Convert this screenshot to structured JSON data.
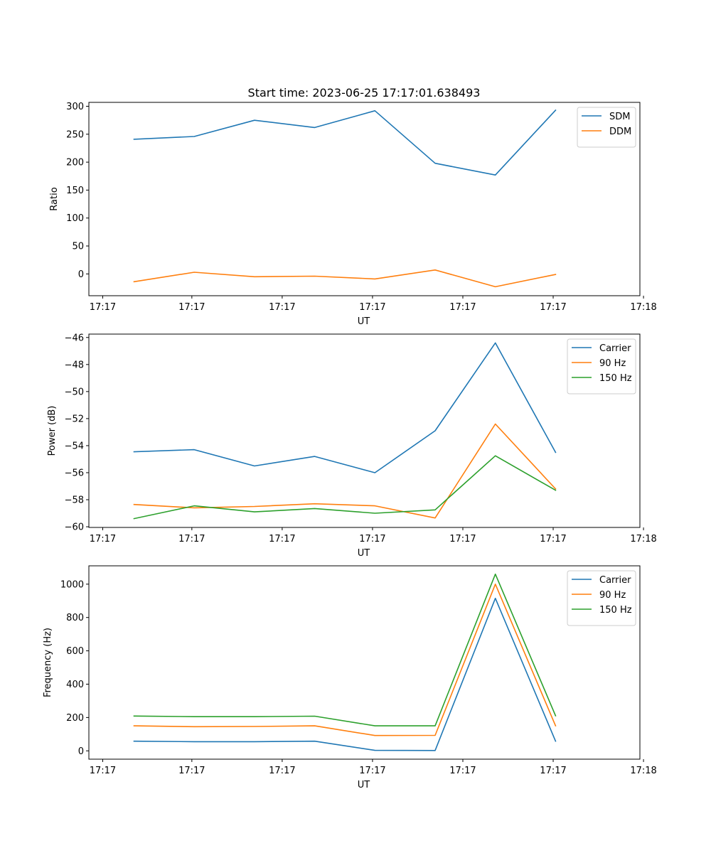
{
  "figure": {
    "title": "Start time: 2023-06-25 17:17:01.638493"
  },
  "chart_data": [
    {
      "type": "line",
      "title": "Start time: 2023-06-25 17:17:01.638493",
      "xlabel": "UT",
      "ylabel": "Ratio",
      "x_ticks": [
        "17:17",
        "17:17",
        "17:17",
        "17:17",
        "17:17",
        "17:17",
        "17:18"
      ],
      "y_ticks": [
        "0",
        "50",
        "100",
        "150",
        "200",
        "250",
        "300"
      ],
      "ylim": [
        -39,
        307
      ],
      "x": [
        1,
        2,
        3,
        4,
        5,
        6,
        7,
        8
      ],
      "xlim": [
        0.25,
        9.4
      ],
      "x_tick_positions": [
        0.48,
        1.96,
        3.46,
        4.96,
        6.46,
        7.96,
        9.46
      ],
      "y_tick_values": [
        0,
        50,
        100,
        150,
        200,
        250,
        300
      ],
      "legend": "upper right",
      "grid": false,
      "series": [
        {
          "name": "SDM",
          "color": "#1f77b4",
          "values": [
            241,
            246,
            275,
            262,
            292,
            198,
            177,
            293
          ]
        },
        {
          "name": "DDM",
          "color": "#ff7f0e",
          "values": [
            -14,
            3,
            -5,
            -4,
            -9,
            7,
            -23,
            -1
          ]
        }
      ]
    },
    {
      "type": "line",
      "title": "",
      "xlabel": "UT",
      "ylabel": "Power (dB)",
      "x_ticks": [
        "17:17",
        "17:17",
        "17:17",
        "17:17",
        "17:17",
        "17:17",
        "17:18"
      ],
      "y_ticks": [
        "−60",
        "−58",
        "−56",
        "−54",
        "−52",
        "−50",
        "−48",
        "−46"
      ],
      "ylim": [
        -60.05,
        -45.75
      ],
      "x": [
        1,
        2,
        3,
        4,
        5,
        6,
        7,
        8
      ],
      "xlim": [
        0.25,
        9.4
      ],
      "x_tick_positions": [
        0.48,
        1.96,
        3.46,
        4.96,
        6.46,
        7.96,
        9.46
      ],
      "y_tick_values": [
        -60,
        -58,
        -56,
        -54,
        -52,
        -50,
        -48,
        -46
      ],
      "legend": "upper right",
      "grid": false,
      "series": [
        {
          "name": "Carrier",
          "color": "#1f77b4",
          "values": [
            -54.45,
            -54.3,
            -55.5,
            -54.8,
            -56.0,
            -52.9,
            -46.4,
            -54.5
          ]
        },
        {
          "name": "90 Hz",
          "color": "#ff7f0e",
          "values": [
            -58.35,
            -58.6,
            -58.5,
            -58.3,
            -58.45,
            -59.35,
            -52.4,
            -57.2
          ]
        },
        {
          "name": "150 Hz",
          "color": "#2ca02c",
          "values": [
            -59.4,
            -58.45,
            -58.9,
            -58.65,
            -59.0,
            -58.75,
            -54.75,
            -57.3
          ]
        }
      ]
    },
    {
      "type": "line",
      "title": "",
      "xlabel": "UT",
      "ylabel": "Frequency (Hz)",
      "x_ticks": [
        "17:17",
        "17:17",
        "17:17",
        "17:17",
        "17:17",
        "17:17",
        "17:18"
      ],
      "y_ticks": [
        "0",
        "200",
        "400",
        "600",
        "800",
        "1000"
      ],
      "ylim": [
        -50,
        1110
      ],
      "x": [
        1,
        2,
        3,
        4,
        5,
        6,
        7,
        8
      ],
      "xlim": [
        0.25,
        9.4
      ],
      "x_tick_positions": [
        0.48,
        1.96,
        3.46,
        4.96,
        6.46,
        7.96,
        9.46
      ],
      "y_tick_values": [
        0,
        200,
        400,
        600,
        800,
        1000
      ],
      "legend": "upper right",
      "grid": false,
      "series": [
        {
          "name": "Carrier",
          "color": "#1f77b4",
          "values": [
            58,
            55,
            55,
            58,
            3,
            2,
            915,
            58
          ]
        },
        {
          "name": "90 Hz",
          "color": "#ff7f0e",
          "values": [
            150,
            145,
            146,
            150,
            92,
            93,
            1000,
            150
          ]
        },
        {
          "name": "150 Hz",
          "color": "#2ca02c",
          "values": [
            209,
            205,
            205,
            208,
            150,
            150,
            1060,
            210
          ]
        }
      ]
    }
  ]
}
